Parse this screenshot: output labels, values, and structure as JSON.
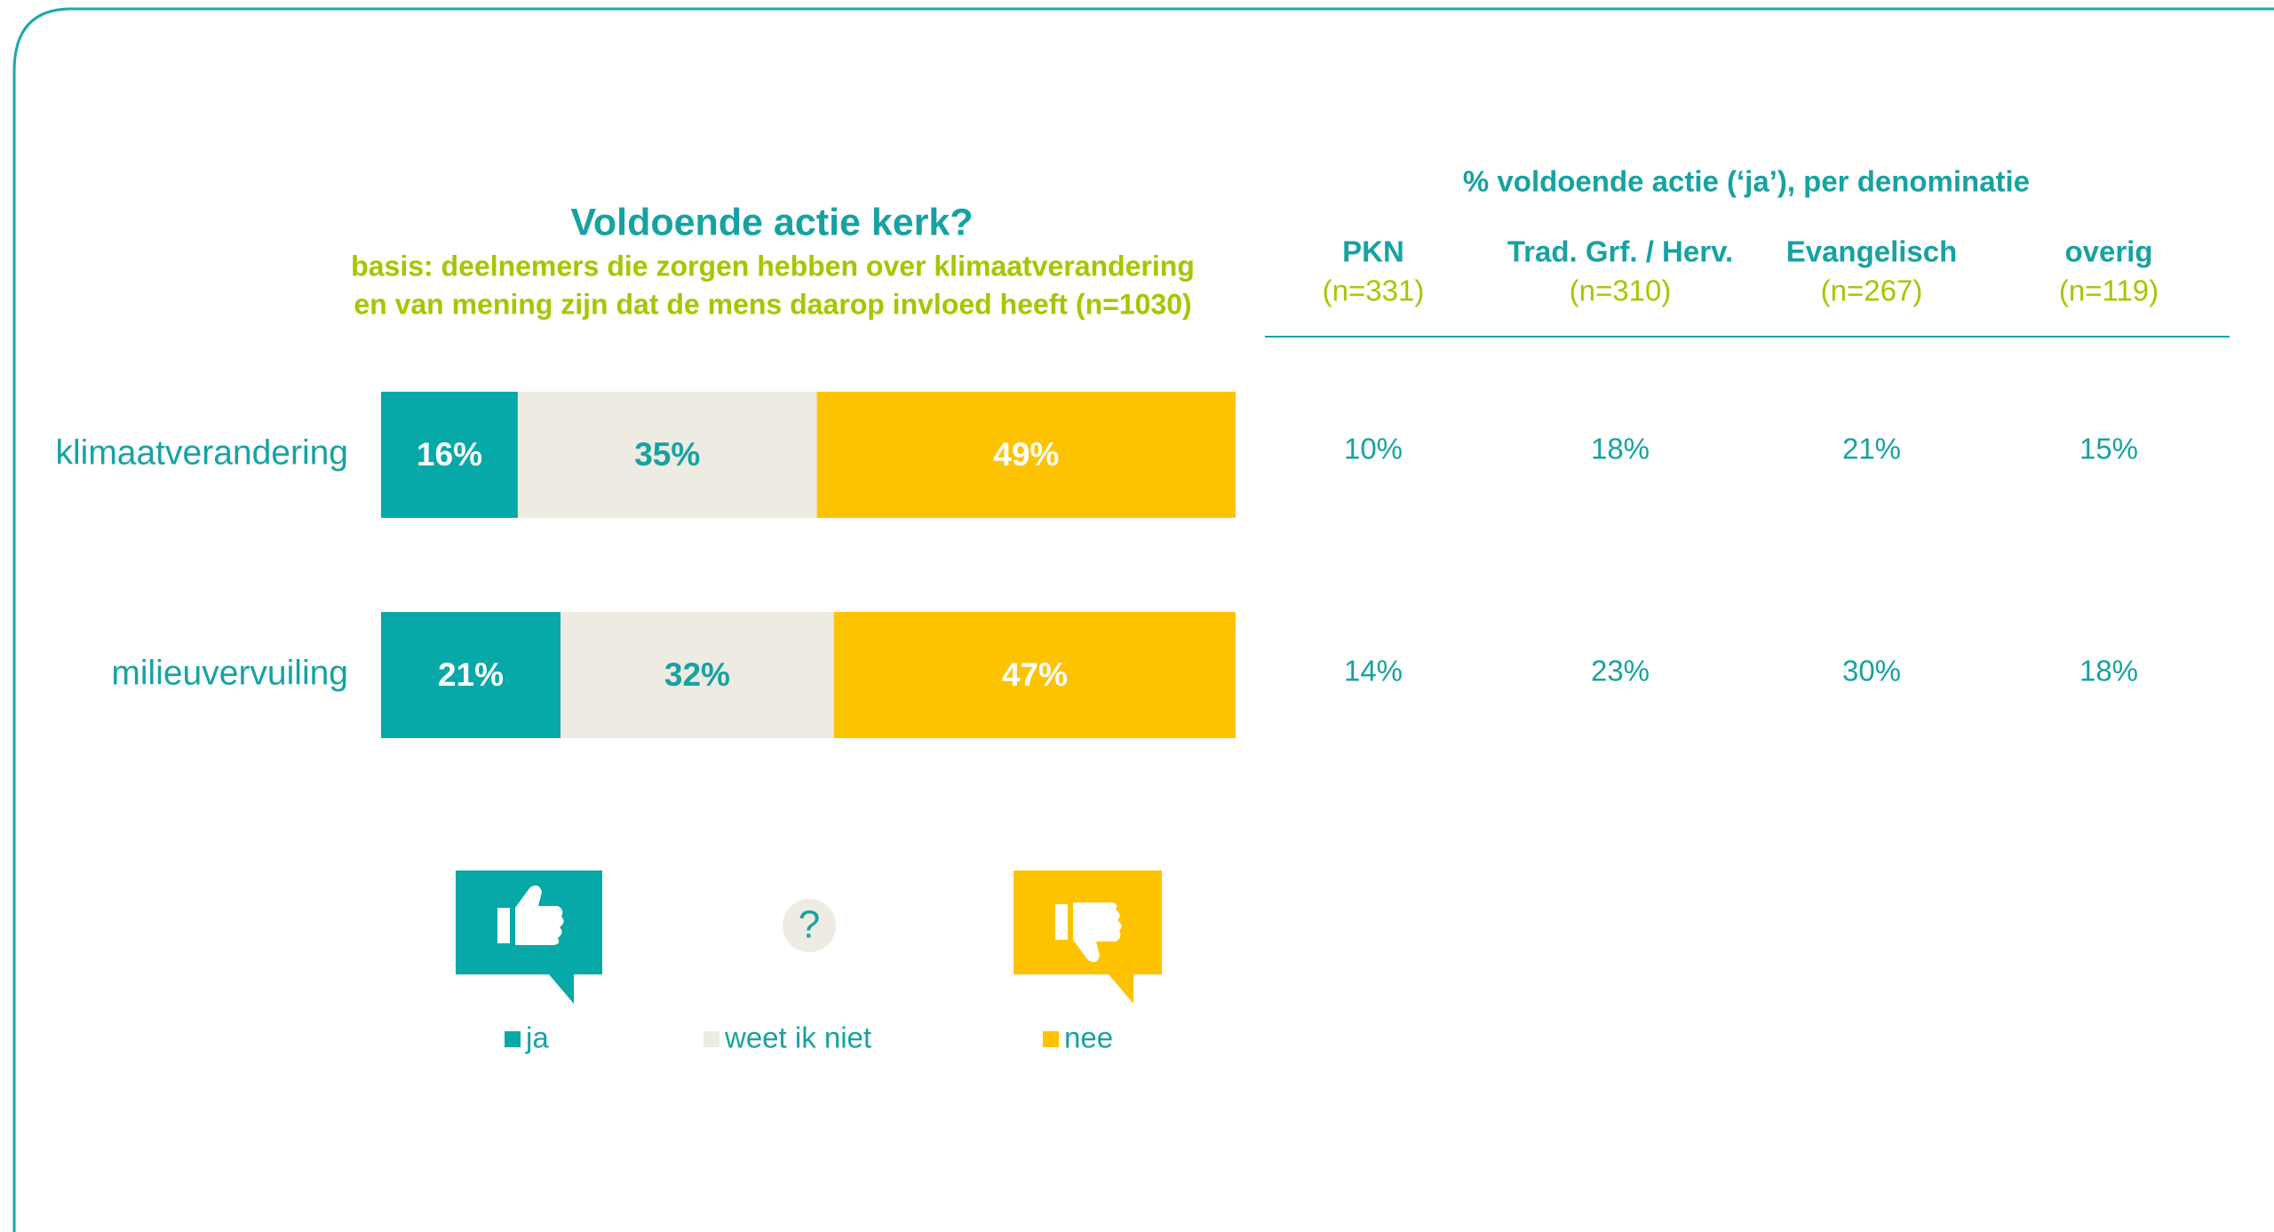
{
  "chart_data": {
    "type": "stacked-bar-horizontal",
    "title": "Voldoende actie kerk?",
    "subtitle": [
      "basis: deelnemers die zorgen hebben over klimaatverandering",
      "en van mening zijn dat de mens daarop invloed heeft (n=1030)"
    ],
    "categories": [
      "klimaatverandering",
      "milieuvervuiling"
    ],
    "series": [
      {
        "name": "ja",
        "color": "#07a8a8",
        "values": [
          16,
          21
        ],
        "value_labels": [
          "16%",
          "21%"
        ]
      },
      {
        "name": "weet ik niet",
        "color": "#edebe2",
        "values": [
          35,
          32
        ],
        "value_labels": [
          "35%",
          "32%"
        ]
      },
      {
        "name": "nee",
        "color": "#fdc300",
        "values": [
          49,
          47
        ],
        "value_labels": [
          "49%",
          "47%"
        ]
      }
    ]
  },
  "table": {
    "title": "% voldoende actie (‘ja’), per denominatie",
    "columns": [
      {
        "name": "PKN",
        "n": "(n=331)"
      },
      {
        "name": "Trad. Grf. / Herv.",
        "n": "(n=310)"
      },
      {
        "name": "Evangelisch",
        "n": "(n=267)"
      },
      {
        "name": "overig",
        "n": "(n=119)"
      }
    ],
    "rows": [
      [
        "10%",
        "18%",
        "21%",
        "15%"
      ],
      [
        "14%",
        "23%",
        "30%",
        "18%"
      ]
    ]
  }
}
